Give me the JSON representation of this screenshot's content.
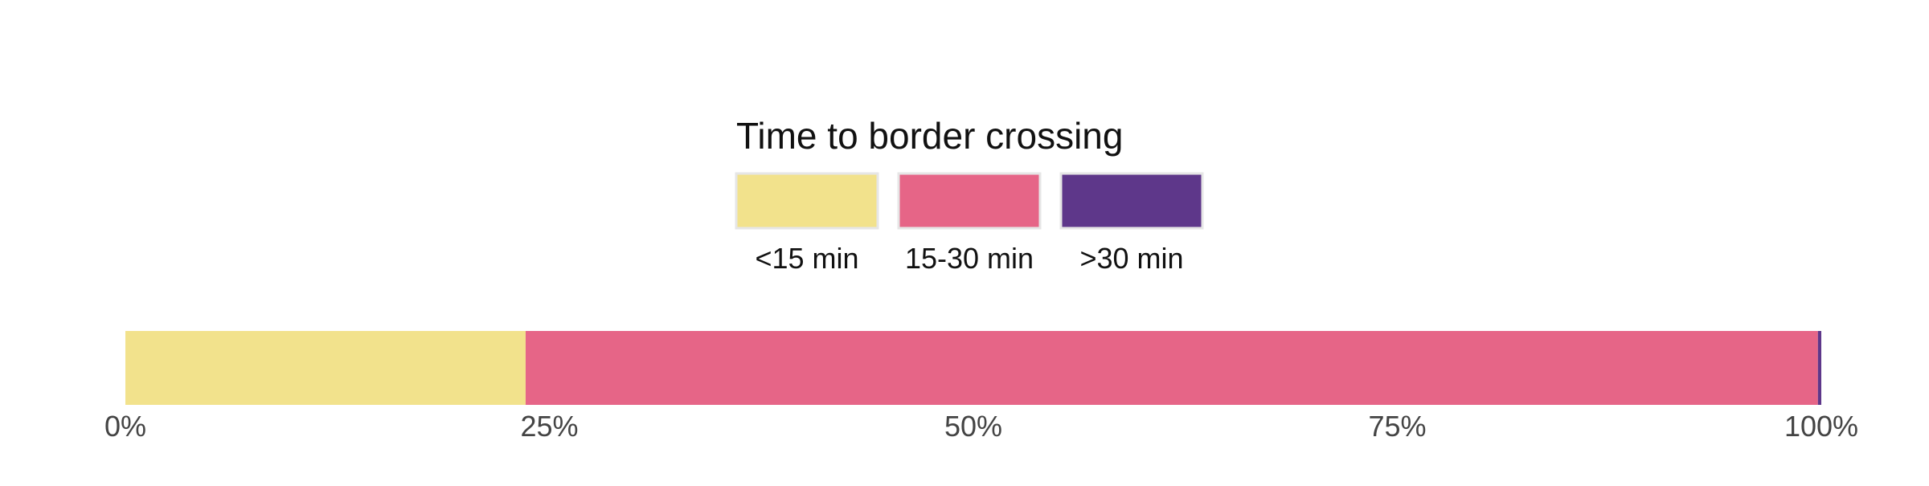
{
  "chart_data": {
    "type": "bar",
    "orientation": "horizontal",
    "stacked": true,
    "normalized": true,
    "legend": {
      "title": "Time to border crossing",
      "placement": "top-center"
    },
    "series": [
      {
        "name": "<15 min",
        "values": [
          23.6
        ],
        "color": "#F2E28C"
      },
      {
        "name": "15-30 min",
        "values": [
          76.2
        ],
        "color": "#E66587"
      },
      {
        "name": ">30 min",
        "values": [
          0.2
        ],
        "color": "#5E378A"
      }
    ],
    "xlim": [
      0,
      100
    ],
    "x_ticks": [
      0,
      25,
      50,
      75,
      100
    ],
    "x_tick_labels": [
      "0%",
      "25%",
      "50%",
      "75%",
      "100%"
    ],
    "grid": false
  }
}
